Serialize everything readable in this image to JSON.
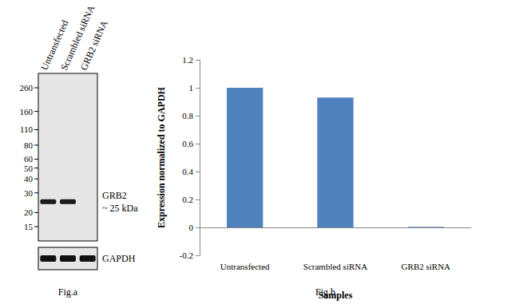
{
  "blot": {
    "caption": "Fig.a",
    "lanes": [
      "Untransfected",
      "Scrambled siRNA",
      "GRB2 siRNA"
    ],
    "markers": [
      260,
      160,
      110,
      80,
      60,
      50,
      40,
      30,
      20,
      15
    ],
    "band": {
      "name": "GRB2",
      "value": 25,
      "label": "~ 25 kDa",
      "present": [
        true,
        true,
        false
      ]
    },
    "loading_control": {
      "name": "GAPDH",
      "present": [
        true,
        true,
        true
      ]
    }
  },
  "chart_data": {
    "type": "bar",
    "caption": "Fig.b",
    "x_label": "Samples",
    "y_label": "Expression normalized to GAPDH",
    "categories": [
      "Untransfected",
      "Scrambled siRNA",
      "GRB2 siRNA"
    ],
    "values": [
      1,
      0.93,
      0.005
    ],
    "color": "#4f81bd",
    "ylim": [
      -0.2,
      1.2
    ],
    "yticks": [
      -0.2,
      0,
      0.2,
      0.4,
      0.6,
      0.8,
      1,
      1.2
    ],
    "grid": false
  }
}
